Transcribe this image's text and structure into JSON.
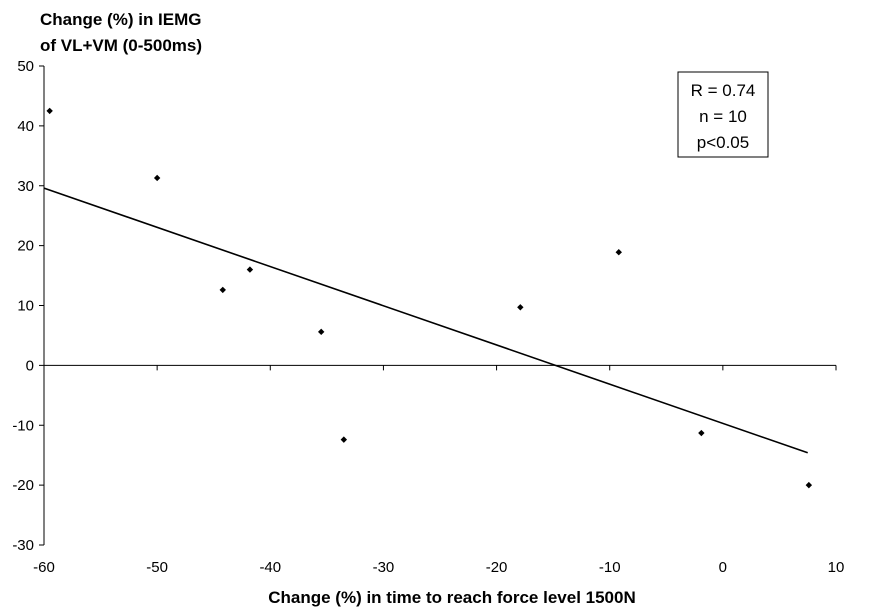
{
  "chart_data": {
    "type": "scatter",
    "ylabel_lines": [
      "Change (%) in IEMG",
      "of VL+VM (0-500ms)"
    ],
    "xlabel": "Change (%) in time to reach force level 1500N",
    "xlim": [
      -60,
      10
    ],
    "ylim": [
      -30,
      50
    ],
    "xticks": [
      "-60",
      "-50",
      "-40",
      "-30",
      "-20",
      "-10",
      "0",
      "10"
    ],
    "yticks": [
      "50",
      "40",
      "30",
      "20",
      "10",
      "0",
      "-10",
      "-20",
      "-30"
    ],
    "points": [
      {
        "x": -59.5,
        "y": 42.5
      },
      {
        "x": -50.0,
        "y": 31.3
      },
      {
        "x": -44.2,
        "y": 12.6
      },
      {
        "x": -41.8,
        "y": 16.0
      },
      {
        "x": -35.5,
        "y": 5.6
      },
      {
        "x": -33.5,
        "y": -12.4
      },
      {
        "x": -17.9,
        "y": 9.7
      },
      {
        "x": -9.2,
        "y": 18.9
      },
      {
        "x": -1.9,
        "y": -11.3
      },
      {
        "x": 7.6,
        "y": -20.0
      }
    ],
    "trendline": {
      "x1": -60,
      "y1": 29.6,
      "x2": 7.5,
      "y2": -14.6
    },
    "grid": false,
    "legend": "none",
    "annotation": [
      "R = 0.74",
      "n = 10",
      "p<0.05"
    ]
  }
}
